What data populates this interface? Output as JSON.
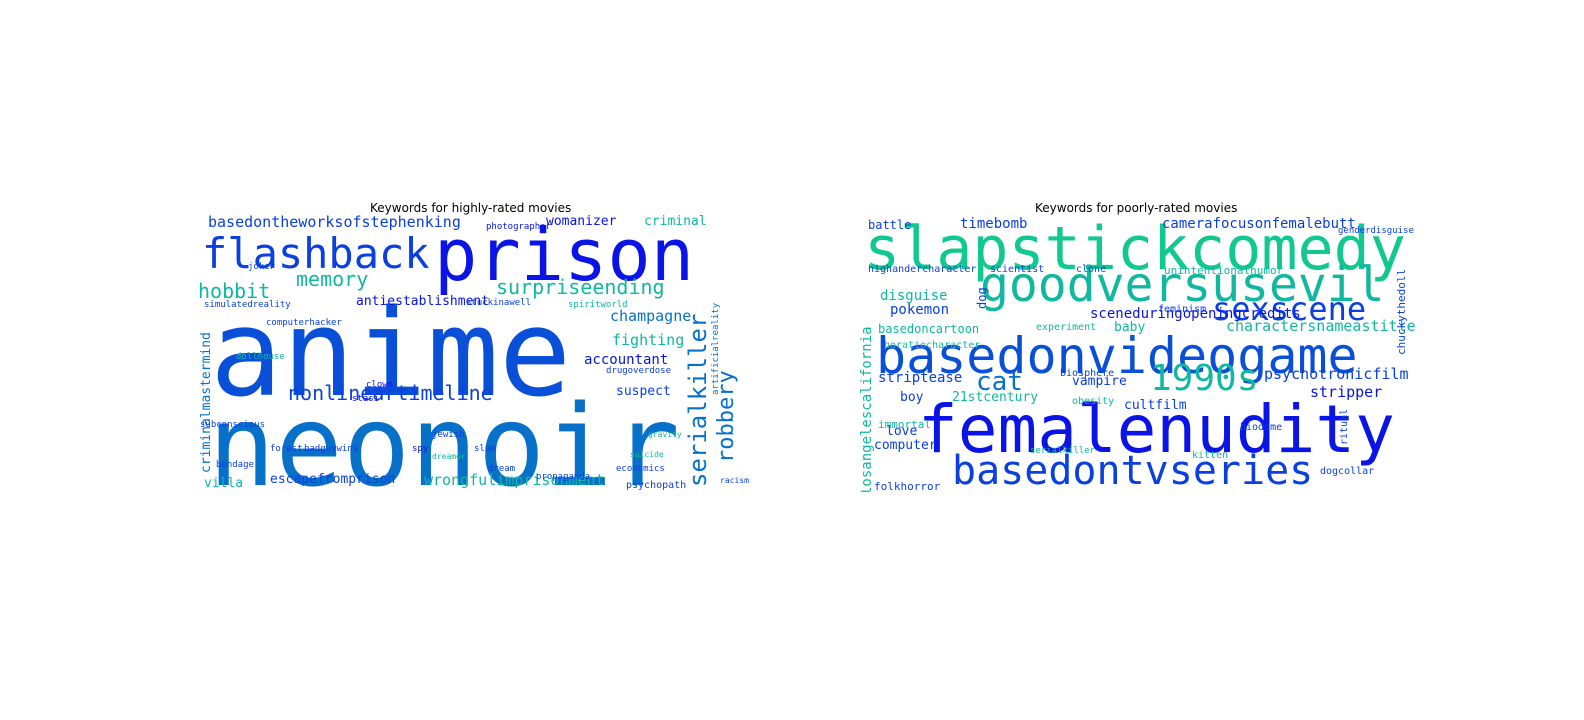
{
  "left": {
    "title": "Keywords for highly-rated movies",
    "words": [
      {
        "text": "anime",
        "color": "#0a4fd8"
      },
      {
        "text": "neonoir",
        "color": "#0770c8"
      },
      {
        "text": "prison",
        "color": "#0a14e6"
      },
      {
        "text": "flashback",
        "color": "#0a3fe0"
      },
      {
        "text": "nonlineartimeline",
        "color": "#0a3fe0"
      },
      {
        "text": "surpriseending",
        "color": "#10b8a0"
      },
      {
        "text": "memory",
        "color": "#10b8a0"
      },
      {
        "text": "hobbit",
        "color": "#10b8a0"
      },
      {
        "text": "basedontheworksofstephenking",
        "color": "#0a3fe0"
      },
      {
        "text": "serialkiller",
        "color": "#0770c8"
      },
      {
        "text": "robbery",
        "color": "#0770c8"
      },
      {
        "text": "womanizer",
        "color": "#0a14e6"
      },
      {
        "text": "criminal",
        "color": "#10b8a0"
      },
      {
        "text": "antiestablishment",
        "color": "#0a14e6"
      },
      {
        "text": "champagne",
        "color": "#0770c8"
      },
      {
        "text": "fighting",
        "color": "#10b8a0"
      },
      {
        "text": "accountant",
        "color": "#0a14e6"
      },
      {
        "text": "suspect",
        "color": "#0a3fe0"
      },
      {
        "text": "escapefromprison",
        "color": "#0a3fe0"
      },
      {
        "text": "wrongfulimprisonment",
        "color": "#10b8a0"
      },
      {
        "text": "villa",
        "color": "#10b8a0"
      },
      {
        "text": "criminalmastermind",
        "color": "#0770c8"
      },
      {
        "text": "psychopath",
        "color": "#0a3fe0"
      },
      {
        "text": "photographer",
        "color": "#0a14e6"
      },
      {
        "text": "stuckinawell",
        "color": "#0a3fe0"
      },
      {
        "text": "spiritworld",
        "color": "#10b8a0"
      },
      {
        "text": "drugoverdose",
        "color": "#0a3fe0"
      },
      {
        "text": "badguywins",
        "color": "#0a3fe0"
      },
      {
        "text": "clown",
        "color": "#0a14e6"
      },
      {
        "text": "stasi",
        "color": "#0a14e6"
      },
      {
        "text": "forest",
        "color": "#0a3fe0"
      },
      {
        "text": "spy",
        "color": "#0a14e6"
      },
      {
        "text": "dream",
        "color": "#0a3fe0"
      },
      {
        "text": "joker",
        "color": "#0a3fe0"
      },
      {
        "text": "simulatedreality",
        "color": "#0a3fe0"
      },
      {
        "text": "computerhacker",
        "color": "#0a3fe0"
      },
      {
        "text": "subconscious",
        "color": "#0a3fe0"
      },
      {
        "text": "bondage",
        "color": "#0a3fe0"
      },
      {
        "text": "dollhouse",
        "color": "#10b8a0"
      },
      {
        "text": "jewish",
        "color": "#0a3fe0"
      },
      {
        "text": "slum",
        "color": "#0a3fe0"
      },
      {
        "text": "propaganda",
        "color": "#0a3fe0"
      },
      {
        "text": "economics",
        "color": "#0a3fe0"
      },
      {
        "text": "gravity",
        "color": "#10b8a0"
      },
      {
        "text": "suicide",
        "color": "#10b8a0"
      },
      {
        "text": "racism",
        "color": "#0a3fe0"
      },
      {
        "text": "dreamer",
        "color": "#10b8a0"
      },
      {
        "text": "artificialreality",
        "color": "#0770c8"
      }
    ]
  },
  "right": {
    "title": "Keywords for poorly-rated movies",
    "words": [
      {
        "text": "slapstickcomedy",
        "color": "#10c890"
      },
      {
        "text": "goodversusevil",
        "color": "#10b8a0"
      },
      {
        "text": "basedonvideogame",
        "color": "#0a4fd8"
      },
      {
        "text": "femalenudity",
        "color": "#0a14e6"
      },
      {
        "text": "basedontvseries",
        "color": "#0a3fe0"
      },
      {
        "text": "sexscene",
        "color": "#0a3fe0"
      },
      {
        "text": "1990s",
        "color": "#10b8a0"
      },
      {
        "text": "cat",
        "color": "#0770c8"
      },
      {
        "text": "charactersnameastitle",
        "color": "#10b8a0"
      },
      {
        "text": "sceneduringopeningcredits",
        "color": "#0a14e6"
      },
      {
        "text": "camerafocusonfemalebutt",
        "color": "#0a3fe0"
      },
      {
        "text": "timebomb",
        "color": "#0a3fe0"
      },
      {
        "text": "battle",
        "color": "#0a3fe0"
      },
      {
        "text": "psychotronicfilm",
        "color": "#0a3fe0"
      },
      {
        "text": "stripper",
        "color": "#0a14e6"
      },
      {
        "text": "striptease",
        "color": "#0a3fe0"
      },
      {
        "text": "basedoncartoon",
        "color": "#10b8a0"
      },
      {
        "text": "pokemon",
        "color": "#0a3fe0"
      },
      {
        "text": "disguise",
        "color": "#10b8a0"
      },
      {
        "text": "21stcentury",
        "color": "#10b8a0"
      },
      {
        "text": "cultfilm",
        "color": "#0a3fe0"
      },
      {
        "text": "vampire",
        "color": "#0a3fe0"
      },
      {
        "text": "love",
        "color": "#0a3fe0"
      },
      {
        "text": "boy",
        "color": "#0a3fe0"
      },
      {
        "text": "computer",
        "color": "#0a3fe0"
      },
      {
        "text": "baby",
        "color": "#10b8a0"
      },
      {
        "text": "folkhorror",
        "color": "#0a3fe0"
      },
      {
        "text": "losangelescalifornia",
        "color": "#10b8a0"
      },
      {
        "text": "chuckythedoll",
        "color": "#0a3fe0"
      },
      {
        "text": "unintentionalhumor",
        "color": "#10b8a0"
      },
      {
        "text": "scientist",
        "color": "#0a3fe0"
      },
      {
        "text": "clone",
        "color": "#0a3fe0"
      },
      {
        "text": "biodome",
        "color": "#0a3fe0"
      },
      {
        "text": "horatiocharacter",
        "color": "#10b8a0"
      },
      {
        "text": "highandercharacter",
        "color": "#0a3fe0"
      },
      {
        "text": "immortal",
        "color": "#10b8a0"
      },
      {
        "text": "kitten",
        "color": "#10b8a0"
      },
      {
        "text": "dog",
        "color": "#0a3fe0"
      },
      {
        "text": "ritual",
        "color": "#0a3fe0"
      },
      {
        "text": "feminism",
        "color": "#0a3fe0"
      },
      {
        "text": "biosphere",
        "color": "#0a3fe0"
      },
      {
        "text": "obesity",
        "color": "#10b8a0"
      },
      {
        "text": "dogcollar",
        "color": "#0a3fe0"
      },
      {
        "text": "experiment",
        "color": "#10b8a0"
      },
      {
        "text": "serialkiller",
        "color": "#10b8a0"
      },
      {
        "text": "genderdisguise",
        "color": "#0a3fe0"
      }
    ]
  }
}
